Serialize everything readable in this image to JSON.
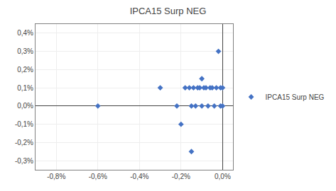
{
  "chart_data": {
    "type": "scatter",
    "title": "IPCA15 Surp NEG",
    "x": [
      -0.006,
      -0.003,
      -0.0022,
      -0.002,
      -0.0018,
      -0.0016,
      -0.0015,
      -0.0014,
      -0.0013,
      -0.0012,
      -0.0011,
      -0.001,
      -0.0009,
      -0.0008,
      -0.0007,
      -0.0006,
      -0.0005,
      -0.0004,
      -0.0003,
      -0.0002,
      -0.0001,
      -0.0001,
      0.0,
      0.0,
      -0.0015,
      -0.001
    ],
    "series": [
      {
        "name": "IPCA15 Surp NEG",
        "color": "#4472C4",
        "marker": "diamond",
        "values": [
          0.0,
          0.001,
          0.0,
          -0.001,
          0.001,
          0.001,
          0.0,
          0.001,
          0.0,
          0.001,
          0.001,
          0.0,
          0.001,
          0.001,
          0.0,
          0.001,
          0.001,
          0.0,
          0.001,
          0.003,
          0.001,
          0.0,
          0.001,
          0.0,
          -0.0025,
          0.0015
        ]
      }
    ],
    "xlim": [
      -0.009,
      0.0005
    ],
    "xticks": [
      {
        "value": -0.008,
        "label": "-0,8%"
      },
      {
        "value": -0.006,
        "label": "-0,6%"
      },
      {
        "value": -0.004,
        "label": "-0,4%"
      },
      {
        "value": -0.002,
        "label": "-0,2%"
      },
      {
        "value": 0.0,
        "label": "0,0%"
      }
    ],
    "ylim": [
      -0.0035,
      0.0045
    ],
    "yticks": [
      {
        "value": -0.003,
        "label": "-0,3%"
      },
      {
        "value": -0.002,
        "label": "-0,2%"
      },
      {
        "value": -0.001,
        "label": "-0,1%"
      },
      {
        "value": 0.0,
        "label": "0,0%"
      },
      {
        "value": 0.001,
        "label": "0,1%"
      },
      {
        "value": 0.002,
        "label": "0,2%"
      },
      {
        "value": 0.003,
        "label": "0,3%"
      },
      {
        "value": 0.004,
        "label": "0,4%"
      }
    ],
    "grid": true,
    "legend": "right"
  }
}
